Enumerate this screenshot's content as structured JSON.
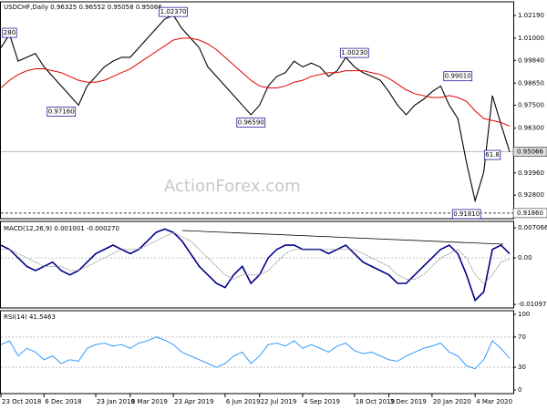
{
  "chart_data": {
    "type": "line",
    "title": "USDCHF,Daily  0.96325 0.96552 0.95058 0.95066",
    "watermark": "ActionForex.com",
    "xlim": [
      0,
      59
    ],
    "xticks": [
      {
        "value": 0,
        "label": "23 Oct 2018"
      },
      {
        "value": 5,
        "label": "6 Dec 2018"
      },
      {
        "value": 11,
        "label": "23 Jan 2019"
      },
      {
        "value": 15,
        "label": "8 Mar 2019"
      },
      {
        "value": 20,
        "label": "23 Apr 2019"
      },
      {
        "value": 26,
        "label": "6 Jun 2019"
      },
      {
        "value": 30,
        "label": "22 Jul 2019"
      },
      {
        "value": 35,
        "label": "4 Sep 2019"
      },
      {
        "value": 41,
        "label": "18 Oct 2019"
      },
      {
        "value": 45,
        "label": "3 Dec 2019"
      },
      {
        "value": 50,
        "label": "20 Jan 2020"
      },
      {
        "value": 55,
        "label": "4 Mar 2020"
      }
    ],
    "ylim": [
      0.9157,
      1.029
    ],
    "yticks": [
      {
        "value": 1.0219,
        "label": "1.02190"
      },
      {
        "value": 1.01,
        "label": "1.01000"
      },
      {
        "value": 0.9984,
        "label": "0.99840"
      },
      {
        "value": 0.9865,
        "label": "0.98650"
      },
      {
        "value": 0.975,
        "label": "0.97500"
      },
      {
        "value": 0.963,
        "label": "0.96300"
      },
      {
        "value": 0.9396,
        "label": "0.93960"
      },
      {
        "value": 0.928,
        "label": "0.92800"
      }
    ],
    "price_lines": [
      {
        "value": 0.95066,
        "label": "0.95066"
      },
      {
        "value": 0.9186,
        "label": "0.91860"
      }
    ],
    "annotations": [
      {
        "x": 1,
        "y": 1.0128,
        "text": "280"
      },
      {
        "x": 7,
        "y": 0.9716,
        "text": "0.97160"
      },
      {
        "x": 20,
        "y": 1.0237,
        "text": "1.02370"
      },
      {
        "x": 29,
        "y": 0.9659,
        "text": "0.96590"
      },
      {
        "x": 41,
        "y": 1.0023,
        "text": "1.00230"
      },
      {
        "x": 53,
        "y": 0.9901,
        "text": "0.99010"
      },
      {
        "x": 54,
        "y": 0.9181,
        "text": "0.91810"
      },
      {
        "x": 57,
        "y": 0.949,
        "text": "61.8"
      }
    ],
    "series": [
      {
        "name": "USDCHF",
        "color": "#000000",
        "values": [
          1.005,
          1.012,
          0.998,
          1.0,
          1.002,
          0.995,
          0.99,
          0.985,
          0.98,
          0.975,
          0.985,
          0.99,
          0.995,
          0.998,
          1.0,
          1.0,
          1.005,
          1.01,
          1.015,
          1.02,
          1.022,
          1.015,
          1.01,
          1.005,
          0.995,
          0.99,
          0.985,
          0.98,
          0.975,
          0.97,
          0.975,
          0.985,
          0.99,
          0.992,
          0.998,
          0.995,
          0.997,
          0.995,
          0.99,
          0.993,
          1.0,
          0.995,
          0.992,
          0.99,
          0.988,
          0.982,
          0.975,
          0.97,
          0.975,
          0.978,
          0.982,
          0.985,
          0.975,
          0.968,
          0.945,
          0.925,
          0.94,
          0.98,
          0.965,
          0.95066
        ]
      },
      {
        "name": "MA",
        "color": "#e00000",
        "values": [
          0.984,
          0.988,
          0.991,
          0.993,
          0.994,
          0.994,
          0.993,
          0.992,
          0.99,
          0.988,
          0.987,
          0.987,
          0.988,
          0.99,
          0.992,
          0.994,
          0.997,
          1.0,
          1.003,
          1.006,
          1.009,
          1.01,
          1.01,
          1.009,
          1.007,
          1.004,
          1.0,
          0.996,
          0.992,
          0.988,
          0.985,
          0.984,
          0.984,
          0.985,
          0.987,
          0.988,
          0.99,
          0.991,
          0.992,
          0.992,
          0.993,
          0.993,
          0.993,
          0.992,
          0.991,
          0.989,
          0.986,
          0.983,
          0.981,
          0.98,
          0.979,
          0.979,
          0.98,
          0.979,
          0.977,
          0.972,
          0.968,
          0.967,
          0.966,
          0.964
        ]
      }
    ],
    "macd": {
      "title": "MACD(12,26,9) 0.001001 -0.000270",
      "ylim": [
        -0.0118,
        0.0086
      ],
      "yticks": [
        {
          "value": 0.007066,
          "label": "0.007066"
        },
        {
          "value": 0,
          "label": "0.00"
        },
        {
          "value": -0.010975,
          "label": "-0.010975"
        }
      ],
      "series": [
        {
          "name": "MACD",
          "color": "#00008b",
          "values": [
            0.003,
            0.002,
            0,
            -0.002,
            -0.003,
            -0.002,
            -0.001,
            -0.003,
            -0.004,
            -0.003,
            -0.001,
            0.001,
            0.002,
            0.003,
            0.002,
            0.001,
            0.002,
            0.004,
            0.006,
            0.0068,
            0.006,
            0.004,
            0.001,
            -0.002,
            -0.004,
            -0.006,
            -0.007,
            -0.004,
            -0.002,
            -0.006,
            -0.004,
            0,
            0.002,
            0.003,
            0.003,
            0.002,
            0.002,
            0.002,
            0.001,
            0.002,
            0.003,
            0.001,
            -0.001,
            -0.002,
            -0.003,
            -0.004,
            -0.006,
            -0.006,
            -0.004,
            -0.002,
            0,
            0.002,
            0.003,
            0.001,
            -0.004,
            -0.01,
            -0.008,
            0.002,
            0.003,
            0.001
          ]
        },
        {
          "name": "Signal",
          "color": "#888888",
          "values": [
            0.002,
            0.002,
            0.001,
            0,
            -0.001,
            -0.002,
            -0.002,
            -0.002,
            -0.003,
            -0.003,
            -0.002,
            -0.001,
            0,
            0.001,
            0.002,
            0.002,
            0.002,
            0.003,
            0.004,
            0.005,
            0.006,
            0.005,
            0.004,
            0.002,
            0,
            -0.002,
            -0.004,
            -0.005,
            -0.004,
            -0.004,
            -0.004,
            -0.003,
            -0.001,
            0.001,
            0.002,
            0.002,
            0.002,
            0.002,
            0.002,
            0.002,
            0.002,
            0.002,
            0.001,
            0,
            -0.001,
            -0.002,
            -0.004,
            -0.005,
            -0.005,
            -0.004,
            -0.002,
            0,
            0.001,
            0.002,
            0,
            -0.004,
            -0.006,
            -0.004,
            -0.001,
            -0.00027
          ]
        }
      ]
    },
    "rsi": {
      "title": "RSI(14) 41.5463",
      "ylim": [
        -4.8,
        104.8
      ],
      "yticks": [
        100,
        70,
        30,
        0
      ],
      "color": "#1e90ff",
      "values": [
        60,
        65,
        45,
        55,
        50,
        40,
        45,
        35,
        40,
        38,
        55,
        60,
        62,
        58,
        60,
        55,
        62,
        65,
        70,
        66,
        60,
        50,
        45,
        40,
        35,
        30,
        35,
        45,
        50,
        35,
        45,
        60,
        62,
        58,
        65,
        55,
        60,
        55,
        50,
        58,
        62,
        52,
        48,
        50,
        45,
        40,
        38,
        45,
        50,
        55,
        58,
        62,
        50,
        45,
        32,
        28,
        40,
        65,
        55,
        41.5463
      ]
    }
  }
}
